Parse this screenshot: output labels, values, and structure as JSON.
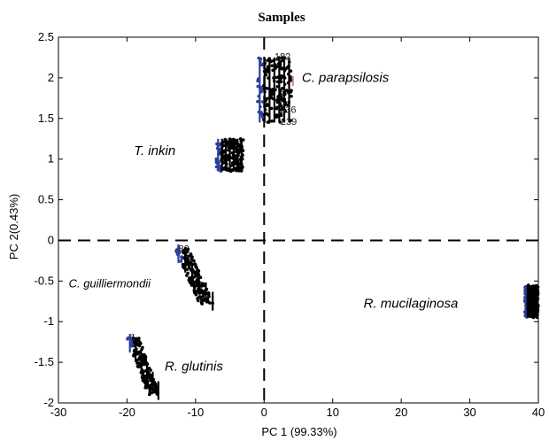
{
  "chart_data": {
    "type": "scatter",
    "title": "Samples",
    "xlabel": "PC 1 (99.33%)",
    "ylabel": "PC 2(0.43%)",
    "xlim": [
      -30,
      40
    ],
    "ylim": [
      -2,
      2.5
    ],
    "xticks": [
      "-30",
      "-20",
      "-10",
      "0",
      "10",
      "20",
      "30",
      "40"
    ],
    "yticks": [
      "-2",
      "-1.5",
      "-1",
      "-0.5",
      "0",
      "0.5",
      "1",
      "1.5",
      "2",
      "2.5"
    ],
    "reference_lines": {
      "x": 0,
      "y": 0,
      "style": "dashed"
    },
    "groups": [
      {
        "name": "C. parapsilosis",
        "x_range": [
          -1,
          4
        ],
        "y_range": [
          1.45,
          2.25
        ],
        "labels": [
          "182",
          "236",
          "239"
        ]
      },
      {
        "name": "T. inkin",
        "x_range": [
          -7,
          -3
        ],
        "y_range": [
          0.85,
          1.25
        ],
        "labels": []
      },
      {
        "name": "C. guilliermondii",
        "x_range": [
          -13,
          -7
        ],
        "y_range": [
          -0.8,
          -0.1
        ],
        "labels": [
          "83"
        ]
      },
      {
        "name": "R. mucilaginosa",
        "x_range": [
          38,
          40
        ],
        "y_range": [
          -0.95,
          -0.55
        ],
        "labels": []
      },
      {
        "name": "R. glutinis",
        "x_range": [
          -20,
          -15
        ],
        "y_range": [
          -1.9,
          -1.2
        ],
        "labels": [
          "1"
        ]
      }
    ],
    "colors": {
      "primary": "#000000",
      "secondary": "#2e3f9e",
      "accent": "#d98080"
    },
    "grid": false,
    "legend": "none"
  }
}
